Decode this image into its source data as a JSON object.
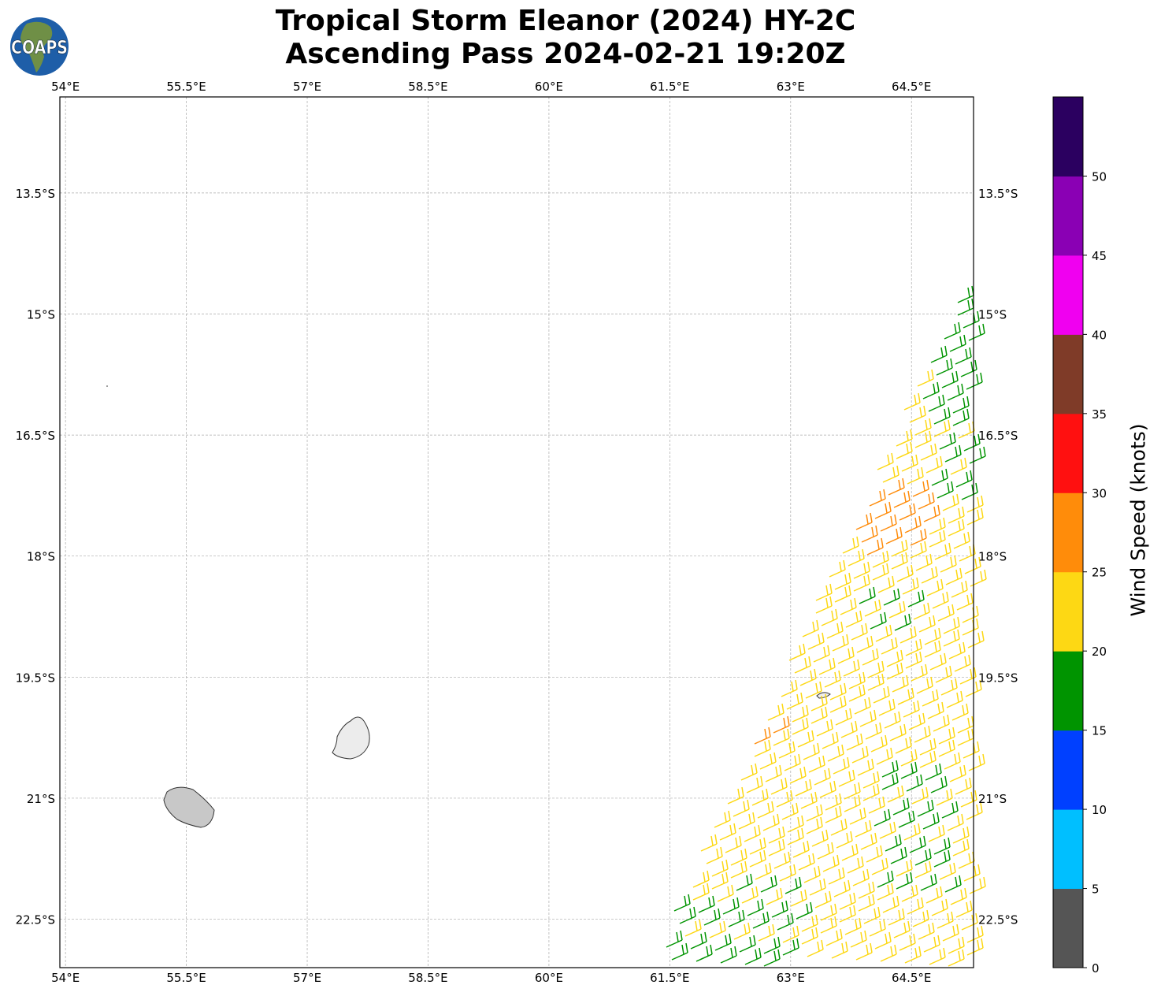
{
  "title": {
    "line1": "Tropical Storm Eleanor (2024) HY-2C",
    "line2": "Ascending Pass 2024-02-21 19:20Z"
  },
  "logo": {
    "text": "COAPS"
  },
  "map": {
    "lon_range": [
      53.93,
      65.27
    ],
    "lat_range": [
      -12.31,
      -23.1
    ],
    "lon_ticks": [
      {
        "v": 54,
        "label": "54°E"
      },
      {
        "v": 55.5,
        "label": "55.5°E"
      },
      {
        "v": 57,
        "label": "57°E"
      },
      {
        "v": 58.5,
        "label": "58.5°E"
      },
      {
        "v": 60,
        "label": "60°E"
      },
      {
        "v": 61.5,
        "label": "61.5°E"
      },
      {
        "v": 63,
        "label": "63°E"
      },
      {
        "v": 64.5,
        "label": "64.5°E"
      }
    ],
    "lat_ticks": [
      {
        "v": -13.5,
        "label": "13.5°S"
      },
      {
        "v": -15,
        "label": "15°S"
      },
      {
        "v": -16.5,
        "label": "16.5°S"
      },
      {
        "v": -18,
        "label": "18°S"
      },
      {
        "v": -19.5,
        "label": "19.5°S"
      },
      {
        "v": -21,
        "label": "21°S"
      },
      {
        "v": -22.5,
        "label": "22.5°S"
      }
    ],
    "gridlines": true
  },
  "colorbar": {
    "label": "Wind Speed (knots)",
    "bounds": [
      0,
      5,
      10,
      15,
      20,
      25,
      30,
      35,
      40,
      45,
      50,
      55
    ],
    "tick_labels": [
      "0",
      "5",
      "10",
      "15",
      "20",
      "25",
      "30",
      "35",
      "40",
      "45",
      "50"
    ],
    "colors": [
      "#555555",
      "#00bfff",
      "#0040ff",
      "#009400",
      "#fdd814",
      "#ff8c0a",
      "#ff1010",
      "#7f3b28",
      "#f000f0",
      "#8a00b4",
      "#2b0060"
    ]
  }
}
